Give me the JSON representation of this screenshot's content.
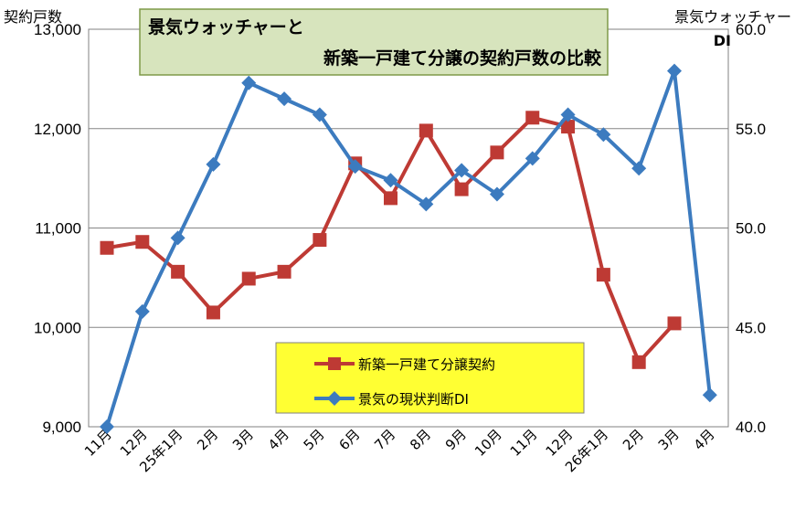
{
  "chart_data": {
    "type": "line",
    "title_lines": [
      "景気ウォッチャーと",
      "新築一戸建て分譲の契約戸数の比較"
    ],
    "ylabel_left": "契約戸数",
    "ylabel_right": "景気ウォッチャー",
    "ylabel_right_sub": "DI",
    "ylim_left": [
      9000,
      13000
    ],
    "ylim_right": [
      40.0,
      60.0
    ],
    "left_ticks": [
      "9,000",
      "10,000",
      "11,000",
      "12,000",
      "13,000"
    ],
    "right_ticks": [
      "40.0",
      "45.0",
      "50.0",
      "55.0",
      "60.0"
    ],
    "categories": [
      "11月",
      "12月",
      "25年1月",
      "2月",
      "3月",
      "4月",
      "5月",
      "6月",
      "7月",
      "8月",
      "9月",
      "10月",
      "11月",
      "12月",
      "26年1月",
      "2月",
      "3月",
      "4月"
    ],
    "grid": true,
    "legend_position": "bottom-center",
    "series": [
      {
        "name": "新築一戸建て分譲契約",
        "axis": "left",
        "color": "#BE3A34",
        "marker": "square",
        "values": [
          10800,
          10860,
          10560,
          10150,
          10490,
          10560,
          10880,
          11650,
          11300,
          11980,
          11390,
          11760,
          12110,
          12020,
          10530,
          9650,
          10040,
          null
        ]
      },
      {
        "name": "景気の現状判断DI",
        "axis": "right",
        "color": "#3C7BBF",
        "marker": "diamond",
        "values": [
          40.0,
          45.8,
          49.5,
          53.2,
          57.3,
          56.5,
          55.7,
          53.1,
          52.4,
          51.2,
          52.9,
          51.7,
          53.5,
          55.7,
          54.7,
          53.0,
          57.9,
          41.6
        ]
      }
    ]
  }
}
